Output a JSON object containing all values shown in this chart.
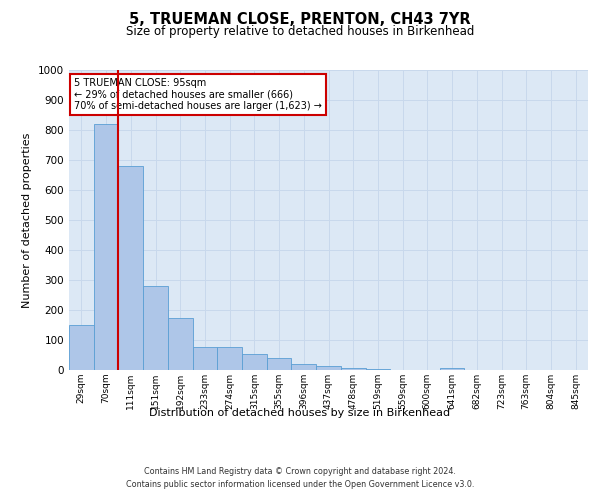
{
  "title": "5, TRUEMAN CLOSE, PRENTON, CH43 7YR",
  "subtitle": "Size of property relative to detached houses in Birkenhead",
  "xlabel": "Distribution of detached houses by size in Birkenhead",
  "ylabel": "Number of detached properties",
  "footer_line1": "Contains HM Land Registry data © Crown copyright and database right 2024.",
  "footer_line2": "Contains public sector information licensed under the Open Government Licence v3.0.",
  "categories": [
    "29sqm",
    "70sqm",
    "111sqm",
    "151sqm",
    "192sqm",
    "233sqm",
    "274sqm",
    "315sqm",
    "355sqm",
    "396sqm",
    "437sqm",
    "478sqm",
    "519sqm",
    "559sqm",
    "600sqm",
    "641sqm",
    "682sqm",
    "723sqm",
    "763sqm",
    "804sqm",
    "845sqm"
  ],
  "values": [
    150,
    820,
    680,
    280,
    175,
    78,
    78,
    52,
    40,
    20,
    13,
    8,
    3,
    0,
    0,
    8,
    0,
    0,
    0,
    0,
    0
  ],
  "bar_color": "#aec6e8",
  "bar_edge_color": "#5a9fd4",
  "grid_color": "#c8d8ec",
  "background_color": "#dce8f5",
  "vline_x_index": 1.5,
  "vline_color": "#cc0000",
  "annotation_text": "5 TRUEMAN CLOSE: 95sqm\n← 29% of detached houses are smaller (666)\n70% of semi-detached houses are larger (1,623) →",
  "annotation_box_color": "#ffffff",
  "annotation_box_edge_color": "#cc0000",
  "ylim": [
    0,
    1000
  ],
  "yticks": [
    0,
    100,
    200,
    300,
    400,
    500,
    600,
    700,
    800,
    900,
    1000
  ]
}
